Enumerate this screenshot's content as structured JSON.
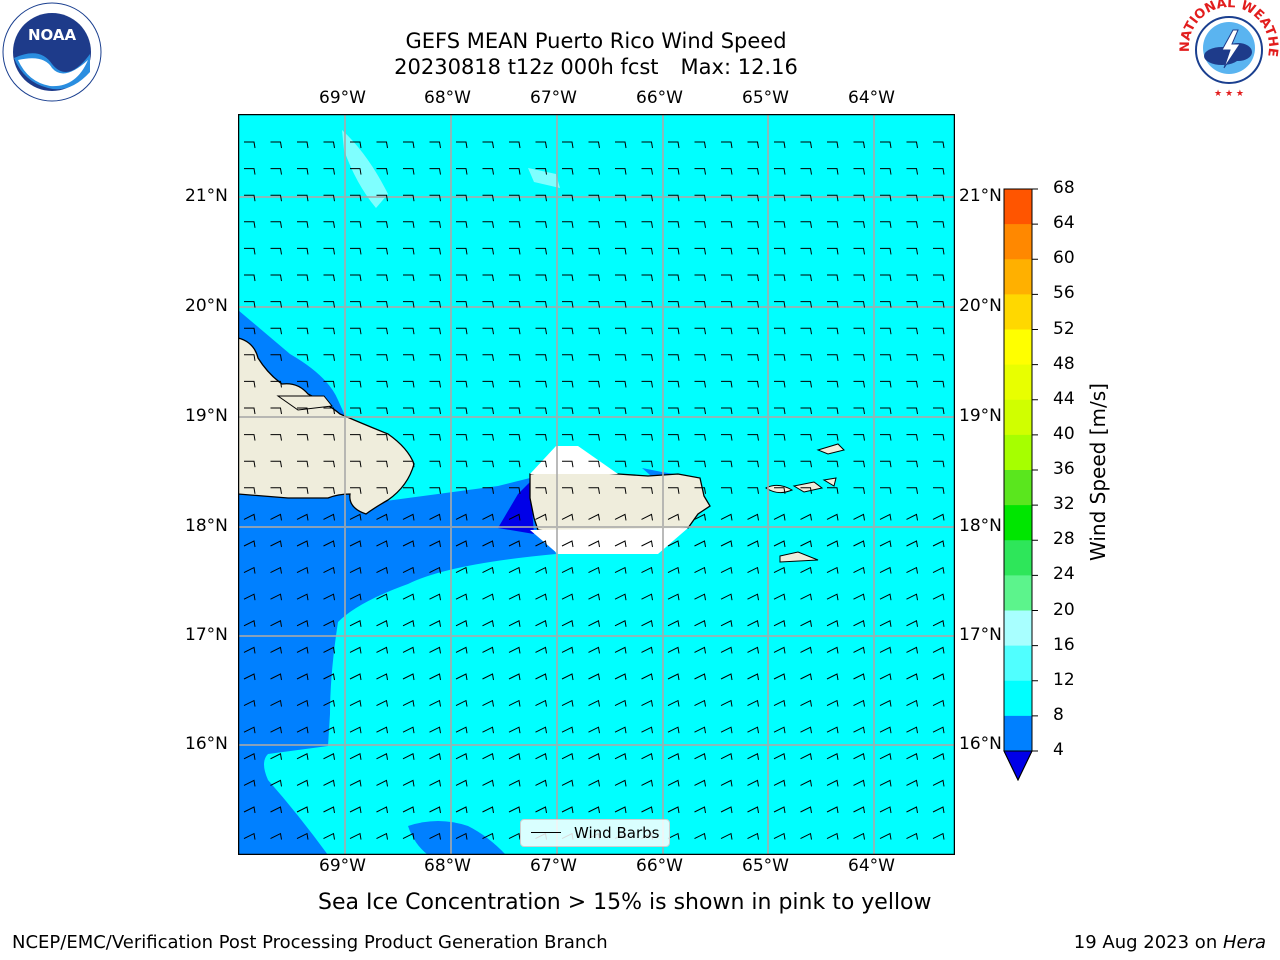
{
  "title": {
    "line1": "GEFS MEAN Puerto Rico Wind Speed",
    "line2": "20230818 t12z 000h fcst",
    "max": "Max: 12.16"
  },
  "lon_labels": [
    "69°W",
    "68°W",
    "67°W",
    "66°W",
    "65°W",
    "64°W"
  ],
  "lat_labels": [
    "21°N",
    "20°N",
    "19°N",
    "18°N",
    "17°N",
    "16°N"
  ],
  "colorbar": {
    "title": "Wind Speed [m/s]",
    "ticks": [
      "68",
      "64",
      "60",
      "56",
      "52",
      "48",
      "44",
      "40",
      "36",
      "32",
      "28",
      "24",
      "20",
      "16",
      "12",
      "8",
      "4"
    ],
    "colors": [
      "#ff0000",
      "#ff2600",
      "#ff5500",
      "#ff8800",
      "#ffb000",
      "#ffd800",
      "#ffff00",
      "#e8ff00",
      "#d0ff00",
      "#a6ff00",
      "#5ae61e",
      "#00e600",
      "#2ee65a",
      "#5cf48c",
      "#a8ffff",
      "#50ffff",
      "#00ffff",
      "#0080ff",
      "#0000e8"
    ]
  },
  "legend": {
    "label": "Wind Barbs"
  },
  "caption": "Sea Ice Concentration > 15% is shown in pink to yellow",
  "footer": {
    "left": "NCEP/EMC/Verification Post Processing Product Generation Branch",
    "date": "19 Aug 2023 on ",
    "machine": "Hera"
  },
  "logos": {
    "left": "NOAA",
    "right": "NATIONAL WEATHER SERVICE"
  },
  "map_colors": {
    "ocean": "#00ffff",
    "low_wind": "#0080ff",
    "very_low": "#0000e8",
    "land": "#efeddc",
    "gust": "#7fffff"
  }
}
